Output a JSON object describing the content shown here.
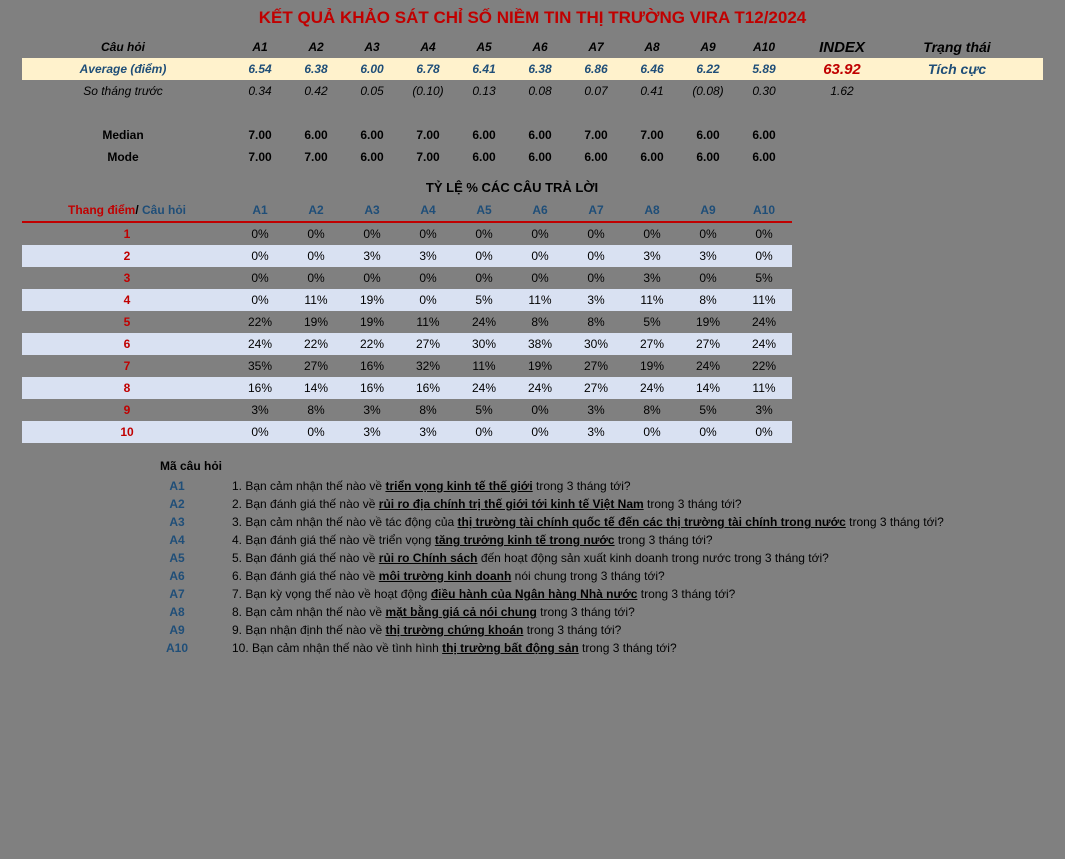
{
  "title_main": "KẾT QUẢ KHẢO SÁT CHỈ SỐ NIỀM TIN THỊ TRƯỜNG VIRA ",
  "title_period": "T12/2024",
  "header": {
    "question": "Câu hỏi",
    "cols": [
      "A1",
      "A2",
      "A3",
      "A4",
      "A5",
      "A6",
      "A7",
      "A8",
      "A9",
      "A10"
    ],
    "index": "INDEX",
    "status": "Trạng thái"
  },
  "average": {
    "label": "Average (điểm)",
    "values": [
      "6.54",
      "6.38",
      "6.00",
      "6.78",
      "6.41",
      "6.38",
      "6.86",
      "6.46",
      "6.22",
      "5.89"
    ],
    "index": "63.92",
    "status": "Tích cực"
  },
  "diff": {
    "label": "So tháng trước",
    "values": [
      "0.34",
      "0.42",
      "0.05",
      "(0.10)",
      "0.13",
      "0.08",
      "0.07",
      "0.41",
      "(0.08)",
      "0.30"
    ],
    "index": "1.62"
  },
  "median": {
    "label": "Median",
    "values": [
      "7.00",
      "6.00",
      "6.00",
      "7.00",
      "6.00",
      "6.00",
      "7.00",
      "7.00",
      "6.00",
      "6.00"
    ]
  },
  "mode": {
    "label": "Mode",
    "values": [
      "7.00",
      "7.00",
      "6.00",
      "7.00",
      "6.00",
      "6.00",
      "6.00",
      "6.00",
      "6.00",
      "6.00"
    ]
  },
  "pct_title": "TỶ LỆ % CÁC CÂU TRẢ LỜI",
  "pct_header": {
    "label_scale": "Thang điểm",
    "label_slash": "/ ",
    "label_q": "Câu hỏi",
    "cols": [
      "A1",
      "A2",
      "A3",
      "A4",
      "A5",
      "A6",
      "A7",
      "A8",
      "A9",
      "A10"
    ]
  },
  "pct_rows": [
    {
      "scale": "1",
      "vals": [
        "0%",
        "0%",
        "0%",
        "0%",
        "0%",
        "0%",
        "0%",
        "0%",
        "0%",
        "0%"
      ]
    },
    {
      "scale": "2",
      "vals": [
        "0%",
        "0%",
        "3%",
        "3%",
        "0%",
        "0%",
        "0%",
        "3%",
        "3%",
        "0%"
      ]
    },
    {
      "scale": "3",
      "vals": [
        "0%",
        "0%",
        "0%",
        "0%",
        "0%",
        "0%",
        "0%",
        "3%",
        "0%",
        "5%"
      ]
    },
    {
      "scale": "4",
      "vals": [
        "0%",
        "11%",
        "19%",
        "0%",
        "5%",
        "11%",
        "3%",
        "11%",
        "8%",
        "11%"
      ]
    },
    {
      "scale": "5",
      "vals": [
        "22%",
        "19%",
        "19%",
        "11%",
        "24%",
        "8%",
        "8%",
        "5%",
        "19%",
        "24%"
      ]
    },
    {
      "scale": "6",
      "vals": [
        "24%",
        "22%",
        "22%",
        "27%",
        "30%",
        "38%",
        "30%",
        "27%",
        "27%",
        "24%"
      ]
    },
    {
      "scale": "7",
      "vals": [
        "35%",
        "27%",
        "16%",
        "32%",
        "11%",
        "19%",
        "27%",
        "19%",
        "24%",
        "22%"
      ]
    },
    {
      "scale": "8",
      "vals": [
        "16%",
        "14%",
        "16%",
        "16%",
        "24%",
        "24%",
        "27%",
        "24%",
        "14%",
        "11%"
      ]
    },
    {
      "scale": "9",
      "vals": [
        "3%",
        "8%",
        "3%",
        "8%",
        "5%",
        "0%",
        "3%",
        "8%",
        "5%",
        "3%"
      ]
    },
    {
      "scale": "10",
      "vals": [
        "0%",
        "0%",
        "3%",
        "3%",
        "0%",
        "0%",
        "3%",
        "0%",
        "0%",
        "0%"
      ]
    }
  ],
  "q_header": "Mã câu hỏi",
  "questions": [
    {
      "code": "A1",
      "num": "1.",
      "pre": "Bạn cảm nhận thế nào về ",
      "u": "triển vọng kinh tế thế giới",
      "post": " trong 3 tháng tới?"
    },
    {
      "code": "A2",
      "num": "2.",
      "pre": "Bạn đánh giá thế nào về ",
      "u": "rủi ro địa chính trị thế giới tới kinh tế Việt Nam",
      "post": " trong 3 tháng tới?"
    },
    {
      "code": "A3",
      "num": "3.",
      "pre": "Bạn cảm nhận thế nào về tác động của ",
      "u": "thị trường tài chính quốc tế đến các thị trường tài chính trong nước",
      "post": " trong 3 tháng tới?"
    },
    {
      "code": "A4",
      "num": "4.",
      "pre": "Bạn đánh giá thế nào về triển vọng ",
      "u": "tăng trưởng kinh tế trong nước",
      "post": " trong 3 tháng tới?"
    },
    {
      "code": "A5",
      "num": "5.",
      "pre": "Bạn đánh giá thế nào về ",
      "u": "rủi ro Chính sách",
      "post": " đến hoạt động sản xuất kinh doanh trong nước trong 3 tháng tới?"
    },
    {
      "code": "A6",
      "num": "6.",
      "pre": "Bạn đánh giá thế nào về ",
      "u": "môi trường kinh doanh",
      "post": " nói chung trong 3 tháng tới?"
    },
    {
      "code": "A7",
      "num": "7.",
      "pre": "Bạn kỳ vọng thế nào về hoạt động ",
      "u": "điều hành của Ngân hàng Nhà nước",
      "post": " trong 3 tháng tới?"
    },
    {
      "code": "A8",
      "num": "8.",
      "pre": "Bạn cảm nhận thế nào về ",
      "u": "mặt bằng giá cả nói chung",
      "post": " trong 3 tháng tới?"
    },
    {
      "code": "A9",
      "num": "9.",
      "pre": "Bạn nhận định thế nào về ",
      "u": "thị trường chứng khoán",
      "post": " trong 3 tháng tới?"
    },
    {
      "code": "A10",
      "num": "10.",
      "pre": "Bạn cảm nhận thế nào về tình hình ",
      "u": "thị trường bất động sản",
      "post": " trong 3 tháng tới?"
    }
  ]
}
